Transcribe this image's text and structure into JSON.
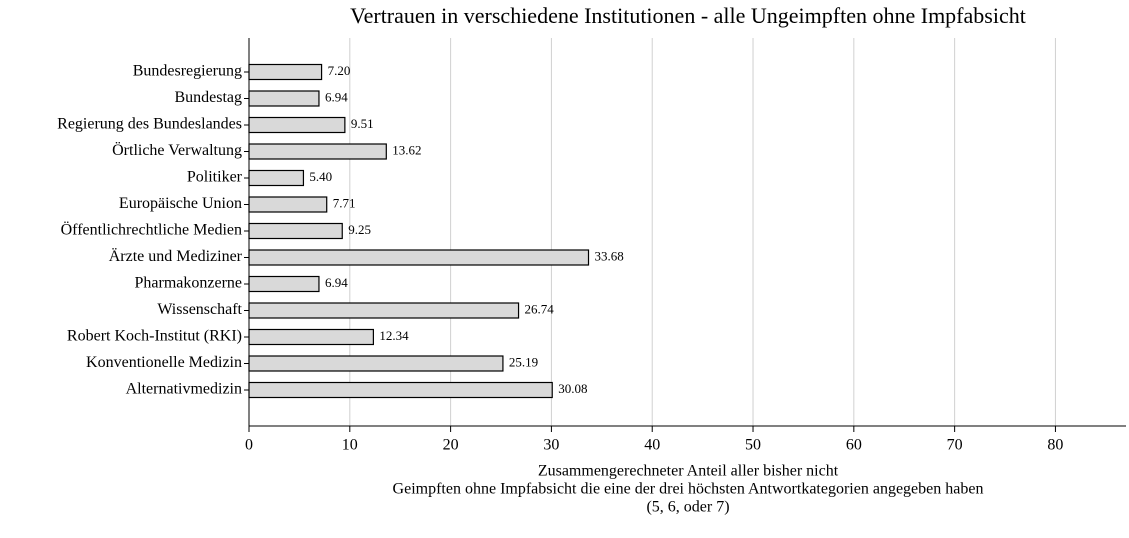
{
  "chart_data": {
    "type": "barh",
    "title": "Vertrauen in verschiedene Institutionen - alle Ungeimpften ohne Impfabsicht",
    "categories": [
      "Bundesregierung",
      "Bundestag",
      "Regierung des Bundeslandes",
      "Örtliche Verwaltung",
      "Politiker",
      "Europäische Union",
      "Öffentlichrechtliche Medien",
      "Ärzte und Mediziner",
      "Pharmakonzerne",
      "Wissenschaft",
      "Robert Koch-Institut (RKI)",
      "Konventionelle Medizin",
      "Alternativmedizin"
    ],
    "values": [
      7.2,
      6.94,
      9.51,
      13.62,
      5.4,
      7.71,
      9.25,
      33.68,
      6.94,
      26.74,
      12.34,
      25.19,
      30.08
    ],
    "value_labels": [
      "7.20",
      "6.94",
      "9.51",
      "13.62",
      "5.40",
      "7.71",
      "9.25",
      "33.68",
      "6.94",
      "26.74",
      "12.34",
      "25.19",
      "30.08"
    ],
    "color": "#d9d9d9",
    "xlim": [
      0,
      87
    ],
    "xticks": [
      0,
      10,
      20,
      30,
      40,
      50,
      60,
      70,
      80
    ],
    "grid": true,
    "xlabel": [
      "Zusammengerechneter Anteil aller bisher nicht",
      "Geimpften ohne Impfabsicht die eine der drei höchsten Antwortkategorien angegeben haben",
      "(5, 6, oder 7)"
    ]
  }
}
